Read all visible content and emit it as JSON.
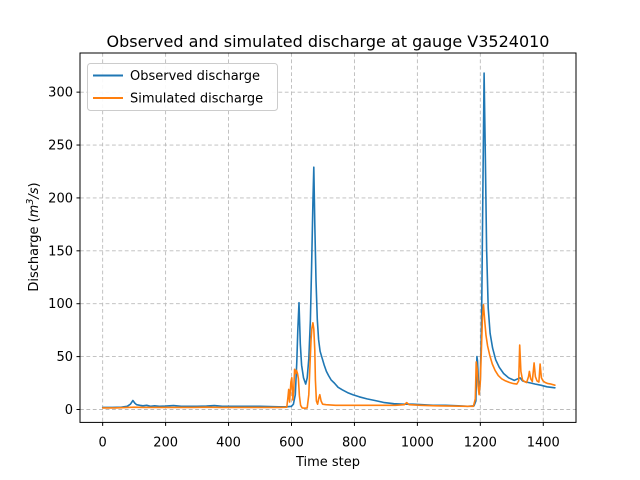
{
  "figure": {
    "title": "Observed and simulated discharge at gauge V3524010",
    "xlabel": "Time step",
    "ylabel_parts": {
      "prefix": "Discharge (",
      "m": "m",
      "sup": "3",
      "slash_s": "/s",
      "suffix": ")"
    },
    "background_color": "#ffffff",
    "spine_color": "#000000"
  },
  "chart_data": {
    "type": "line",
    "title": "Observed and simulated discharge at gauge V3524010",
    "xlabel": "Time step",
    "ylabel": "Discharge (m3/s)",
    "xlim": [
      -72,
      1504
    ],
    "ylim": [
      -12.2,
      337
    ],
    "xticks": [
      0,
      200,
      400,
      600,
      800,
      1000,
      1200,
      1400
    ],
    "yticks": [
      0,
      50,
      100,
      150,
      200,
      250,
      300
    ],
    "grid": {
      "visible": true,
      "style": "dashed",
      "color": "#bbbbbb"
    },
    "legend_position": "upper left",
    "series": [
      {
        "name": "Observed discharge",
        "color": "#1f77b4",
        "points": [
          [
            0,
            2
          ],
          [
            30,
            2
          ],
          [
            60,
            2.2
          ],
          [
            78,
            3
          ],
          [
            88,
            5
          ],
          [
            96,
            8.5
          ],
          [
            102,
            6
          ],
          [
            108,
            4.5
          ],
          [
            118,
            4
          ],
          [
            128,
            3.5
          ],
          [
            140,
            4
          ],
          [
            152,
            3
          ],
          [
            165,
            3.5
          ],
          [
            180,
            3
          ],
          [
            200,
            3.2
          ],
          [
            225,
            3.8
          ],
          [
            250,
            3
          ],
          [
            275,
            3
          ],
          [
            300,
            3
          ],
          [
            330,
            3.2
          ],
          [
            355,
            3.8
          ],
          [
            380,
            3
          ],
          [
            410,
            3
          ],
          [
            440,
            3
          ],
          [
            470,
            3
          ],
          [
            500,
            3
          ],
          [
            530,
            2.8
          ],
          [
            560,
            2.5
          ],
          [
            585,
            2.5
          ],
          [
            600,
            3
          ],
          [
            606,
            5
          ],
          [
            612,
            14
          ],
          [
            617,
            45
          ],
          [
            620,
            75
          ],
          [
            624,
            101
          ],
          [
            628,
            62
          ],
          [
            632,
            42
          ],
          [
            638,
            30
          ],
          [
            645,
            24
          ],
          [
            650,
            30
          ],
          [
            655,
            48
          ],
          [
            660,
            85
          ],
          [
            664,
            135
          ],
          [
            668,
            195
          ],
          [
            671,
            229
          ],
          [
            674,
            175
          ],
          [
            678,
            122
          ],
          [
            682,
            85
          ],
          [
            686,
            66
          ],
          [
            691,
            55
          ],
          [
            697,
            49
          ],
          [
            704,
            42
          ],
          [
            711,
            36
          ],
          [
            718,
            32
          ],
          [
            726,
            28
          ],
          [
            736,
            25
          ],
          [
            748,
            21
          ],
          [
            762,
            18.5
          ],
          [
            778,
            16
          ],
          [
            795,
            14
          ],
          [
            815,
            12
          ],
          [
            840,
            10
          ],
          [
            865,
            8.5
          ],
          [
            895,
            6.5
          ],
          [
            925,
            5.5
          ],
          [
            955,
            5
          ],
          [
            985,
            5
          ],
          [
            1015,
            4.5
          ],
          [
            1050,
            4
          ],
          [
            1090,
            4
          ],
          [
            1130,
            3.5
          ],
          [
            1160,
            3
          ],
          [
            1180,
            3.5
          ],
          [
            1186,
            8
          ],
          [
            1189,
            50
          ],
          [
            1191,
            46
          ],
          [
            1194,
            28
          ],
          [
            1197,
            17
          ],
          [
            1200,
            28
          ],
          [
            1204,
            85
          ],
          [
            1208,
            200
          ],
          [
            1212,
            318
          ],
          [
            1216,
            235
          ],
          [
            1220,
            152
          ],
          [
            1225,
            96
          ],
          [
            1231,
            72
          ],
          [
            1239,
            58
          ],
          [
            1249,
            47
          ],
          [
            1260,
            40
          ],
          [
            1274,
            34
          ],
          [
            1290,
            30
          ],
          [
            1308,
            27.5
          ],
          [
            1326,
            30
          ],
          [
            1334,
            27
          ],
          [
            1345,
            26
          ],
          [
            1360,
            25
          ],
          [
            1375,
            24
          ],
          [
            1392,
            23
          ],
          [
            1412,
            21.5
          ],
          [
            1437,
            20.5
          ]
        ]
      },
      {
        "name": "Simulated discharge",
        "color": "#ff7f0e",
        "points": [
          [
            0,
            1.5
          ],
          [
            40,
            1.5
          ],
          [
            80,
            2
          ],
          [
            100,
            2.2
          ],
          [
            130,
            2
          ],
          [
            170,
            2
          ],
          [
            210,
            2
          ],
          [
            250,
            2
          ],
          [
            290,
            2
          ],
          [
            330,
            2.2
          ],
          [
            370,
            2
          ],
          [
            410,
            2
          ],
          [
            450,
            2
          ],
          [
            490,
            2
          ],
          [
            530,
            2
          ],
          [
            565,
            2
          ],
          [
            585,
            2.2
          ],
          [
            589,
            12
          ],
          [
            591,
            19
          ],
          [
            594,
            7
          ],
          [
            598,
            26
          ],
          [
            601,
            30
          ],
          [
            604,
            9
          ],
          [
            607,
            18
          ],
          [
            610,
            38
          ],
          [
            613,
            34
          ],
          [
            616,
            37
          ],
          [
            619,
            34
          ],
          [
            622,
            29
          ],
          [
            625,
            13
          ],
          [
            629,
            4
          ],
          [
            634,
            1.5
          ],
          [
            642,
            1.2
          ],
          [
            650,
            1.5
          ],
          [
            655,
            14
          ],
          [
            659,
            45
          ],
          [
            662,
            65
          ],
          [
            665,
            77
          ],
          [
            668,
            82
          ],
          [
            671,
            76
          ],
          [
            674,
            56
          ],
          [
            676,
            28
          ],
          [
            679,
            8
          ],
          [
            683,
            5
          ],
          [
            687,
            11
          ],
          [
            690,
            14
          ],
          [
            694,
            8
          ],
          [
            699,
            5
          ],
          [
            710,
            4.5
          ],
          [
            740,
            4
          ],
          [
            780,
            4
          ],
          [
            830,
            4
          ],
          [
            880,
            4
          ],
          [
            930,
            4
          ],
          [
            958,
            4.5
          ],
          [
            966,
            6.5
          ],
          [
            974,
            4.5
          ],
          [
            1010,
            4
          ],
          [
            1060,
            3.5
          ],
          [
            1110,
            3.2
          ],
          [
            1155,
            3
          ],
          [
            1178,
            3
          ],
          [
            1184,
            10
          ],
          [
            1187,
            45
          ],
          [
            1190,
            38
          ],
          [
            1193,
            22
          ],
          [
            1196,
            14
          ],
          [
            1200,
            26
          ],
          [
            1204,
            62
          ],
          [
            1207,
            88
          ],
          [
            1210,
            99
          ],
          [
            1214,
            84
          ],
          [
            1218,
            70
          ],
          [
            1223,
            60
          ],
          [
            1230,
            51
          ],
          [
            1238,
            43
          ],
          [
            1247,
            37
          ],
          [
            1257,
            32
          ],
          [
            1268,
            29
          ],
          [
            1280,
            27
          ],
          [
            1293,
            25.5
          ],
          [
            1305,
            24.5
          ],
          [
            1316,
            24
          ],
          [
            1322,
            27
          ],
          [
            1325,
            61
          ],
          [
            1329,
            36
          ],
          [
            1334,
            28
          ],
          [
            1340,
            26.5
          ],
          [
            1347,
            25.5
          ],
          [
            1353,
            31
          ],
          [
            1356,
            36
          ],
          [
            1360,
            29
          ],
          [
            1365,
            26.5
          ],
          [
            1371,
            44
          ],
          [
            1375,
            31
          ],
          [
            1380,
            27
          ],
          [
            1386,
            26
          ],
          [
            1390,
            43
          ],
          [
            1394,
            30
          ],
          [
            1399,
            27
          ],
          [
            1406,
            25.5
          ],
          [
            1415,
            24.5
          ],
          [
            1425,
            24
          ],
          [
            1437,
            23
          ]
        ]
      }
    ]
  }
}
